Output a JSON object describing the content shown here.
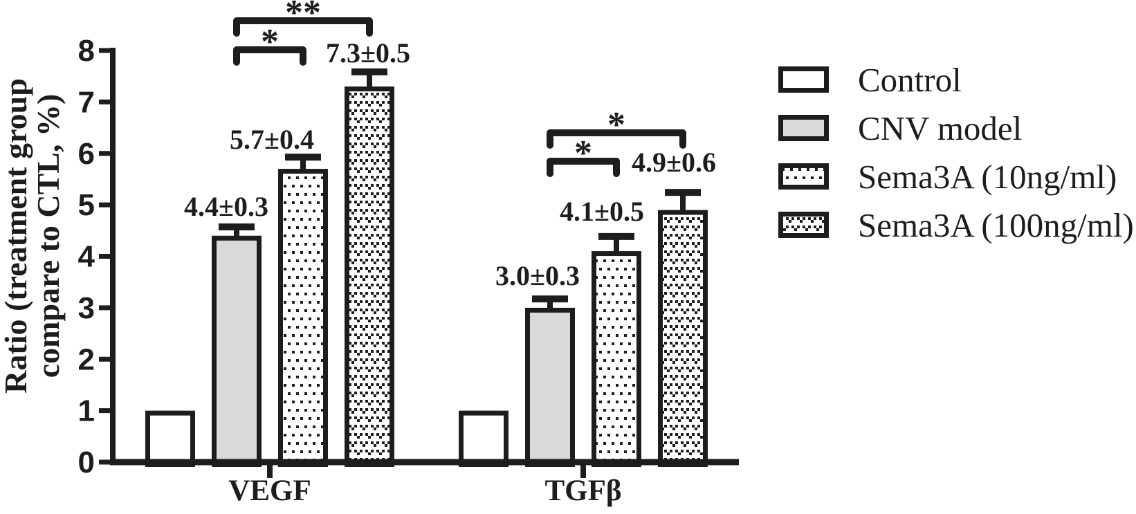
{
  "figure": {
    "background": "#ffffff",
    "ink": "#1d1d1b",
    "gray_fill": "#d8d9da"
  },
  "y_axis_title": {
    "line1": "Ratio (treatment group",
    "line2": "compare to CTL, %)"
  },
  "chart_data": {
    "type": "bar",
    "title": "",
    "xlabel": "",
    "ylabel": "Ratio (treatment group compare to CTL, %)",
    "ylim": [
      0,
      8
    ],
    "yticks": [
      0,
      1,
      2,
      3,
      4,
      5,
      6,
      7,
      8
    ],
    "grid": false,
    "legend_position": "right",
    "categories": [
      "VEGF",
      "TGFβ"
    ],
    "series": [
      {
        "name": "Control",
        "fill": "white",
        "values": [
          1.0,
          1.0
        ],
        "errors": [
          0,
          0
        ],
        "value_labels": [
          "",
          ""
        ]
      },
      {
        "name": "CNV model",
        "fill": "gray",
        "values": [
          4.4,
          3.0
        ],
        "errors": [
          0.3,
          0.3
        ],
        "value_labels": [
          "4.4±0.3",
          "3.0±0.3"
        ]
      },
      {
        "name": "Sema3A (10ng/ml)",
        "fill": "dots",
        "values": [
          5.7,
          4.1
        ],
        "errors": [
          0.4,
          0.5
        ],
        "value_labels": [
          "5.7±0.4",
          "4.1±0.5"
        ]
      },
      {
        "name": "Sema3A (100ng/ml)",
        "fill": "check",
        "values": [
          7.3,
          4.9
        ],
        "errors": [
          0.5,
          0.6
        ],
        "value_labels": [
          "7.3±0.5",
          "4.9±0.6"
        ]
      }
    ],
    "significance": [
      {
        "category": "VEGF",
        "between": [
          "CNV model",
          "Sema3A (10ng/ml)"
        ],
        "label": "*"
      },
      {
        "category": "VEGF",
        "between": [
          "CNV model",
          "Sema3A (100ng/ml)"
        ],
        "label": "**"
      },
      {
        "category": "TGFβ",
        "between": [
          "CNV model",
          "Sema3A (10ng/ml)"
        ],
        "label": "*"
      },
      {
        "category": "TGFβ",
        "between": [
          "CNV model",
          "Sema3A (100ng/ml)"
        ],
        "label": "*"
      }
    ]
  }
}
